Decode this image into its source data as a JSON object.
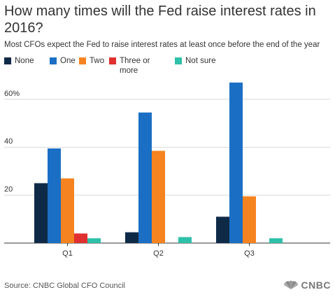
{
  "header": {
    "title": "How many times will the Fed raise interest rates in 2016?",
    "subtitle": "Most CFOs expect the Fed to raise interest rates at least once before the end of the year"
  },
  "legend": {
    "items": [
      {
        "label": "None",
        "color": "#0f2a47"
      },
      {
        "label": "One",
        "color": "#1a6fc4"
      },
      {
        "label": "Two",
        "color": "#f5831f"
      },
      {
        "label": "Three or more",
        "color": "#e03030"
      },
      {
        "label": "Not sure",
        "color": "#2ec0a8"
      }
    ]
  },
  "chart_data": {
    "type": "bar",
    "categories": [
      "Q1",
      "Q2",
      "Q3"
    ],
    "series": [
      {
        "name": "None",
        "color": "#0f2a47",
        "values": [
          25,
          4.5,
          11
        ]
      },
      {
        "name": "One",
        "color": "#1a6fc4",
        "values": [
          39.5,
          54.5,
          67
        ]
      },
      {
        "name": "Two",
        "color": "#f5831f",
        "values": [
          27,
          38.5,
          19.5
        ]
      },
      {
        "name": "Three or more",
        "color": "#e03030",
        "values": [
          4,
          0,
          0
        ]
      },
      {
        "name": "Not sure",
        "color": "#2ec0a8",
        "values": [
          2,
          2.5,
          2
        ]
      }
    ],
    "yticks": [
      20,
      40,
      60
    ],
    "ytick_labels": [
      "20",
      "40",
      "60%"
    ],
    "ylim": [
      0,
      70
    ],
    "grid": true,
    "legend_position": "top-left"
  },
  "footer": {
    "source": "Source: CNBC Global CFO Council",
    "logo_text": "CNBC"
  }
}
